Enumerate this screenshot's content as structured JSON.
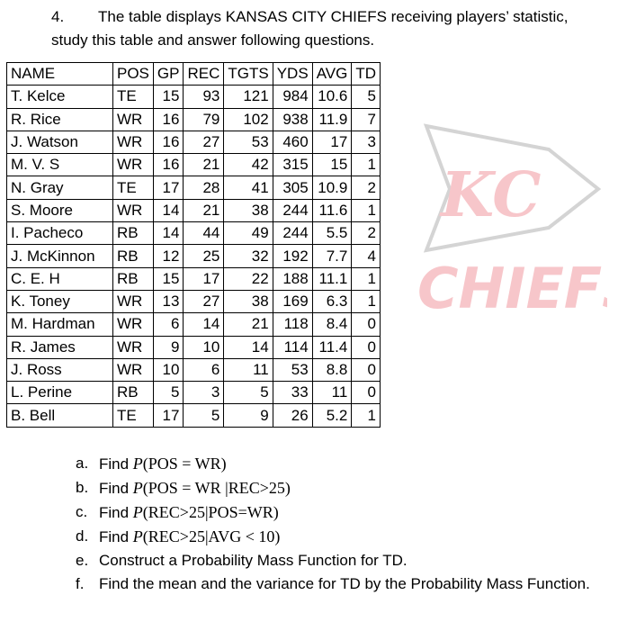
{
  "question": {
    "number": "4.",
    "text_line1": "The table displays KANSAS CITY CHIEFS receiving players’ statistic,",
    "text_line2": "study this table and answer following questions."
  },
  "watermark": {
    "logo_letters": "KC",
    "wordmark": "CHIEFS",
    "color": "#f7c6ca"
  },
  "table": {
    "headers": [
      "NAME",
      "POS",
      "GP",
      "REC",
      "TGTS",
      "YDS",
      "AVG",
      "TD"
    ],
    "rows": [
      [
        "T. Kelce",
        "TE",
        "15",
        "93",
        "121",
        "984",
        "10.6",
        "5"
      ],
      [
        "R. Rice",
        "WR",
        "16",
        "79",
        "102",
        "938",
        "11.9",
        "7"
      ],
      [
        "J. Watson",
        "WR",
        "16",
        "27",
        "53",
        "460",
        "17",
        "3"
      ],
      [
        "M. V. S",
        "WR",
        "16",
        "21",
        "42",
        "315",
        "15",
        "1"
      ],
      [
        "N. Gray",
        "TE",
        "17",
        "28",
        "41",
        "305",
        "10.9",
        "2"
      ],
      [
        "S. Moore",
        "WR",
        "14",
        "21",
        "38",
        "244",
        "11.6",
        "1"
      ],
      [
        "I. Pacheco",
        "RB",
        "14",
        "44",
        "49",
        "244",
        "5.5",
        "2"
      ],
      [
        "J. McKinnon",
        "RB",
        "12",
        "25",
        "32",
        "192",
        "7.7",
        "4"
      ],
      [
        "C. E. H",
        "RB",
        "15",
        "17",
        "22",
        "188",
        "11.1",
        "1"
      ],
      [
        "K. Toney",
        "WR",
        "13",
        "27",
        "38",
        "169",
        "6.3",
        "1"
      ],
      [
        "M.  Hardman",
        "WR",
        "6",
        "14",
        "21",
        "118",
        "8.4",
        "0"
      ],
      [
        "R. James",
        "WR",
        "9",
        "10",
        "14",
        "114",
        "11.4",
        "0"
      ],
      [
        "J. Ross",
        "WR",
        "10",
        "6",
        "11",
        "53",
        "8.8",
        "0"
      ],
      [
        "L. Perine",
        "RB",
        "5",
        "3",
        "5",
        "33",
        "11",
        "0"
      ],
      [
        "B. Bell",
        "TE",
        "17",
        "5",
        "9",
        "26",
        "5.2",
        "1"
      ]
    ]
  },
  "sub_questions": [
    {
      "letter": "a.",
      "prefix": "Find ",
      "math": "P(POS = WR)",
      "suffix": ""
    },
    {
      "letter": "b.",
      "prefix": "Find ",
      "math": "P(POS = WR |REC>25)",
      "suffix": ""
    },
    {
      "letter": "c.",
      "prefix": "Find ",
      "math": "P(REC>25|POS=WR)",
      "suffix": ""
    },
    {
      "letter": "d.",
      "prefix": "Find ",
      "math": "P(REC>25|AVG < 10)",
      "suffix": ""
    },
    {
      "letter": "e.",
      "prefix": "Construct a Probability Mass Function for TD.",
      "math": "",
      "suffix": ""
    },
    {
      "letter": "f.",
      "prefix": "Find the mean and the variance for TD by the Probability Mass Function.",
      "math": "",
      "suffix": ""
    }
  ]
}
